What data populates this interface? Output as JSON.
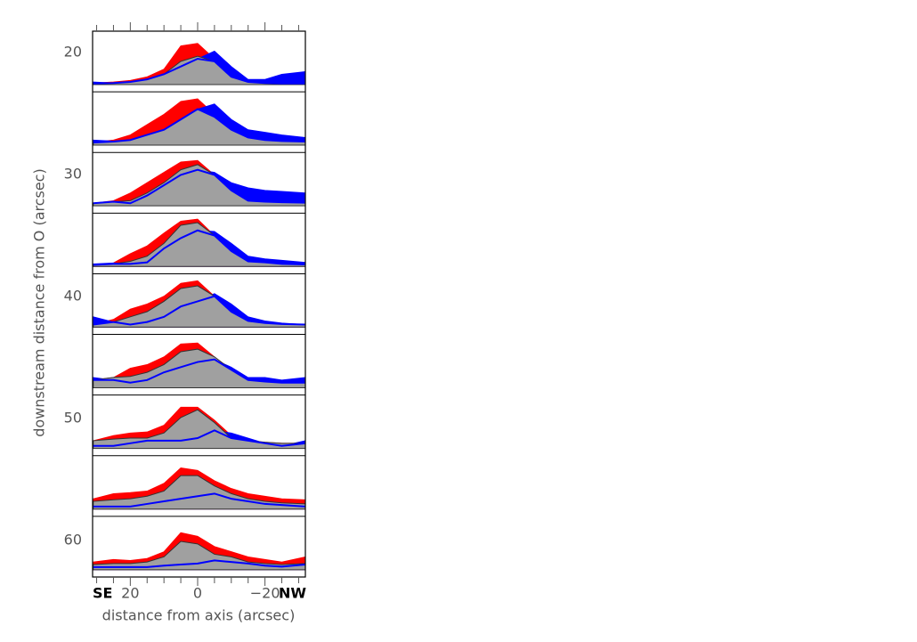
{
  "chart_data": {
    "type": "stacked-profiles",
    "xlabel": "distance from axis (arcsec)",
    "ylabel": "downstream distance from O (arcsec)",
    "left_label": "SE",
    "right_label": "NW",
    "xlim": [
      31.2,
      -32
    ],
    "xticks": [
      20,
      0,
      {
        "value": -20,
        "label": "−20"
      }
    ],
    "xminorticks": [
      30,
      25,
      15,
      10,
      5,
      -5,
      -10,
      -15,
      -25,
      -30
    ],
    "ylim": [
      18.25,
      63
    ],
    "yticks": [
      20,
      30,
      40,
      50,
      60
    ],
    "x": [
      31,
      25,
      20,
      15,
      10,
      5,
      0,
      -5,
      -10,
      -15,
      -20,
      -25,
      -32
    ],
    "colors": {
      "gray": "#a0a0a0",
      "red": "#ff0000",
      "blue": "#0000ff"
    },
    "panels": [
      {
        "gray": [
          0.02,
          0.03,
          0.05,
          0.1,
          0.2,
          0.45,
          0.55,
          0.45,
          0.15,
          0.05,
          0.03,
          0.02,
          0.02
        ],
        "red": [
          0.03,
          0.05,
          0.08,
          0.15,
          0.3,
          0.75,
          0.8,
          0.5,
          0.2,
          0.08,
          0.05,
          0.03,
          0.02
        ],
        "blue": [
          0.05,
          0.03,
          0.05,
          0.1,
          0.2,
          0.35,
          0.5,
          0.65,
          0.35,
          0.1,
          0.1,
          0.2,
          0.25
        ]
      },
      {
        "gray": [
          0.05,
          0.07,
          0.1,
          0.2,
          0.3,
          0.5,
          0.7,
          0.55,
          0.3,
          0.15,
          0.1,
          0.08,
          0.07
        ],
        "red": [
          0.06,
          0.1,
          0.2,
          0.4,
          0.6,
          0.85,
          0.9,
          0.6,
          0.3,
          0.12,
          0.08,
          0.05,
          0.02
        ],
        "blue": [
          0.1,
          0.08,
          0.1,
          0.2,
          0.3,
          0.5,
          0.7,
          0.8,
          0.5,
          0.3,
          0.25,
          0.2,
          0.15
        ]
      },
      {
        "gray": [
          0.05,
          0.08,
          0.1,
          0.25,
          0.45,
          0.7,
          0.8,
          0.6,
          0.3,
          0.1,
          0.08,
          0.07,
          0.06
        ],
        "red": [
          0.05,
          0.1,
          0.25,
          0.45,
          0.65,
          0.85,
          0.88,
          0.6,
          0.3,
          0.12,
          0.08,
          0.07,
          0.06
        ],
        "blue": [
          0.05,
          0.08,
          0.05,
          0.2,
          0.4,
          0.6,
          0.7,
          0.65,
          0.45,
          0.35,
          0.3,
          0.28,
          0.25
        ]
      },
      {
        "gray": [
          0.03,
          0.05,
          0.1,
          0.2,
          0.45,
          0.8,
          0.85,
          0.6,
          0.3,
          0.1,
          0.08,
          0.05,
          0.04
        ],
        "red": [
          0.03,
          0.07,
          0.25,
          0.4,
          0.65,
          0.88,
          0.92,
          0.6,
          0.3,
          0.12,
          0.08,
          0.05,
          0.04
        ],
        "blue": [
          0.05,
          0.07,
          0.05,
          0.08,
          0.35,
          0.55,
          0.7,
          0.68,
          0.45,
          0.2,
          0.15,
          0.12,
          0.08
        ]
      },
      {
        "gray": [
          0.05,
          0.1,
          0.2,
          0.3,
          0.5,
          0.75,
          0.8,
          0.6,
          0.3,
          0.12,
          0.08,
          0.06,
          0.05
        ],
        "red": [
          0.05,
          0.15,
          0.35,
          0.45,
          0.6,
          0.85,
          0.9,
          0.6,
          0.3,
          0.12,
          0.08,
          0.06,
          0.05
        ],
        "blue": [
          0.2,
          0.1,
          0.05,
          0.1,
          0.2,
          0.4,
          0.5,
          0.65,
          0.45,
          0.2,
          0.12,
          0.08,
          0.05
        ]
      },
      {
        "gray": [
          0.15,
          0.2,
          0.22,
          0.3,
          0.45,
          0.7,
          0.75,
          0.6,
          0.35,
          0.15,
          0.12,
          0.1,
          0.1
        ],
        "red": [
          0.15,
          0.2,
          0.38,
          0.45,
          0.6,
          0.85,
          0.87,
          0.6,
          0.35,
          0.15,
          0.12,
          0.1,
          0.1
        ],
        "blue": [
          0.2,
          0.15,
          0.1,
          0.15,
          0.3,
          0.4,
          0.5,
          0.55,
          0.4,
          0.2,
          0.2,
          0.15,
          0.2
        ]
      },
      {
        "gray": [
          0.15,
          0.18,
          0.2,
          0.2,
          0.3,
          0.6,
          0.75,
          0.5,
          0.2,
          0.15,
          0.12,
          0.1,
          0.1
        ],
        "red": [
          0.15,
          0.25,
          0.3,
          0.32,
          0.45,
          0.8,
          0.8,
          0.55,
          0.25,
          0.15,
          0.12,
          0.1,
          0.1
        ],
        "blue": [
          0.05,
          0.05,
          0.1,
          0.15,
          0.15,
          0.15,
          0.2,
          0.35,
          0.3,
          0.2,
          0.1,
          0.05,
          0.15
        ]
      },
      {
        "gray": [
          0.15,
          0.18,
          0.2,
          0.25,
          0.35,
          0.65,
          0.65,
          0.45,
          0.3,
          0.2,
          0.15,
          0.12,
          0.1
        ],
        "red": [
          0.2,
          0.3,
          0.32,
          0.35,
          0.5,
          0.8,
          0.75,
          0.55,
          0.4,
          0.3,
          0.25,
          0.2,
          0.18
        ],
        "blue": [
          0.05,
          0.05,
          0.05,
          0.1,
          0.15,
          0.2,
          0.25,
          0.3,
          0.2,
          0.15,
          0.1,
          0.08,
          0.05
        ]
      },
      {
        "gray": [
          0.1,
          0.12,
          0.12,
          0.15,
          0.25,
          0.55,
          0.5,
          0.3,
          0.25,
          0.15,
          0.12,
          0.1,
          0.12
        ],
        "red": [
          0.15,
          0.2,
          0.18,
          0.22,
          0.35,
          0.72,
          0.65,
          0.45,
          0.35,
          0.25,
          0.2,
          0.15,
          0.25
        ],
        "blue": [
          0.05,
          0.05,
          0.05,
          0.05,
          0.08,
          0.1,
          0.12,
          0.18,
          0.15,
          0.12,
          0.08,
          0.06,
          0.1
        ]
      }
    ]
  }
}
